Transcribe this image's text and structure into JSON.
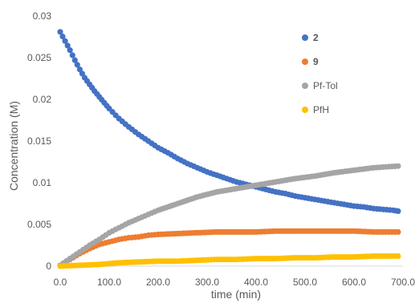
{
  "chart_data": {
    "type": "scatter",
    "xlabel": "time (min)",
    "ylabel": "Concentration (M)",
    "xlim": [
      0,
      700
    ],
    "ylim": [
      0,
      0.03
    ],
    "x_ticks": [
      "0.0",
      "100.0",
      "200.0",
      "300.0",
      "400.0",
      "500.0",
      "600.0",
      "700.0"
    ],
    "y_ticks": [
      "0",
      "0.005",
      "0.01",
      "0.015",
      "0.02",
      "0.025",
      "0.03"
    ],
    "grid": false,
    "legend_position": "right",
    "series": [
      {
        "name": "2",
        "color": "#4472C4",
        "points": [
          [
            0,
            0.0281
          ],
          [
            10,
            0.027
          ],
          [
            20,
            0.0259
          ],
          [
            30,
            0.0247
          ],
          [
            40,
            0.0236
          ],
          [
            50,
            0.0226
          ],
          [
            60,
            0.0218
          ],
          [
            70,
            0.021
          ],
          [
            80,
            0.0203
          ],
          [
            90,
            0.0196
          ],
          [
            100,
            0.0189
          ],
          [
            120,
            0.0177
          ],
          [
            140,
            0.0167
          ],
          [
            160,
            0.0158
          ],
          [
            180,
            0.015
          ],
          [
            200,
            0.0142
          ],
          [
            220,
            0.0136
          ],
          [
            240,
            0.0129
          ],
          [
            260,
            0.0123
          ],
          [
            280,
            0.0118
          ],
          [
            300,
            0.0113
          ],
          [
            320,
            0.0109
          ],
          [
            340,
            0.0105
          ],
          [
            360,
            0.0101
          ],
          [
            380,
            0.0098
          ],
          [
            400,
            0.0095
          ],
          [
            420,
            0.0092
          ],
          [
            440,
            0.0089
          ],
          [
            460,
            0.0087
          ],
          [
            480,
            0.0084
          ],
          [
            500,
            0.0082
          ],
          [
            520,
            0.008
          ],
          [
            540,
            0.0078
          ],
          [
            560,
            0.0076
          ],
          [
            580,
            0.0074
          ],
          [
            600,
            0.0072
          ],
          [
            620,
            0.0071
          ],
          [
            640,
            0.0069
          ],
          [
            660,
            0.0068
          ],
          [
            680,
            0.0067
          ],
          [
            690,
            0.0066
          ]
        ]
      },
      {
        "name": "9",
        "color": "#ED7D31",
        "points": [
          [
            0,
            0.0001
          ],
          [
            20,
            0.0008
          ],
          [
            40,
            0.0015
          ],
          [
            60,
            0.0021
          ],
          [
            80,
            0.0026
          ],
          [
            100,
            0.0029
          ],
          [
            120,
            0.0032
          ],
          [
            140,
            0.0034
          ],
          [
            160,
            0.0035
          ],
          [
            180,
            0.0037
          ],
          [
            200,
            0.0038
          ],
          [
            240,
            0.0039
          ],
          [
            280,
            0.004
          ],
          [
            320,
            0.0041
          ],
          [
            360,
            0.0041
          ],
          [
            400,
            0.0041
          ],
          [
            440,
            0.0042
          ],
          [
            480,
            0.0042
          ],
          [
            520,
            0.0042
          ],
          [
            560,
            0.0042
          ],
          [
            600,
            0.0042
          ],
          [
            640,
            0.0041
          ],
          [
            690,
            0.0041
          ]
        ]
      },
      {
        "name": "Pf-Tol",
        "color": "#A5A5A5",
        "points": [
          [
            0,
            0.0001
          ],
          [
            20,
            0.0009
          ],
          [
            40,
            0.0017
          ],
          [
            60,
            0.0025
          ],
          [
            80,
            0.0032
          ],
          [
            100,
            0.004
          ],
          [
            120,
            0.0046
          ],
          [
            140,
            0.0052
          ],
          [
            160,
            0.0057
          ],
          [
            180,
            0.0062
          ],
          [
            200,
            0.0067
          ],
          [
            240,
            0.0075
          ],
          [
            280,
            0.0083
          ],
          [
            320,
            0.0089
          ],
          [
            360,
            0.0093
          ],
          [
            400,
            0.0097
          ],
          [
            440,
            0.0101
          ],
          [
            480,
            0.0105
          ],
          [
            520,
            0.0108
          ],
          [
            560,
            0.0112
          ],
          [
            600,
            0.0115
          ],
          [
            640,
            0.0118
          ],
          [
            690,
            0.012
          ]
        ]
      },
      {
        "name": "PfH",
        "color": "#FFC000",
        "points": [
          [
            0,
            0.0
          ],
          [
            40,
            0.0001
          ],
          [
            80,
            0.0002
          ],
          [
            120,
            0.0004
          ],
          [
            160,
            0.0005
          ],
          [
            200,
            0.0006
          ],
          [
            240,
            0.0006
          ],
          [
            280,
            0.0007
          ],
          [
            320,
            0.0008
          ],
          [
            360,
            0.0008
          ],
          [
            400,
            0.0009
          ],
          [
            440,
            0.0009
          ],
          [
            480,
            0.001
          ],
          [
            520,
            0.001
          ],
          [
            560,
            0.0011
          ],
          [
            600,
            0.0011
          ],
          [
            640,
            0.0012
          ],
          [
            690,
            0.0012
          ]
        ]
      }
    ]
  }
}
